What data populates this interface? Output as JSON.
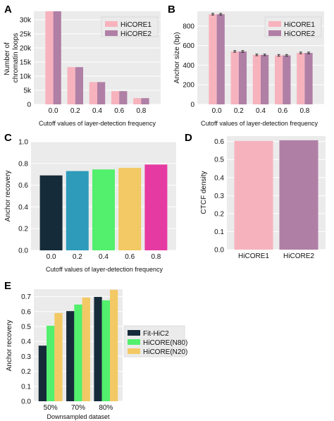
{
  "colors": {
    "hicore1": "#f7b3bd",
    "hicore2": "#b07fa6",
    "fithic2": "#162b3a",
    "hicore_n80": "#52f06c",
    "hicore_n20": "#f2c964",
    "c_bar1": "#162b3a",
    "c_bar2": "#2e9bbb",
    "c_bar3": "#52f06c",
    "c_bar4": "#f2c964",
    "c_bar5": "#e63aa3"
  },
  "chart_data": [
    {
      "id": "A",
      "panel_label": "A",
      "type": "bar",
      "categories": [
        "0.0",
        "0.2",
        "0.4",
        "0.6",
        "0.8"
      ],
      "series": [
        {
          "name": "HiCORE1",
          "values": [
            33000,
            13200,
            7900,
            4700,
            2200
          ]
        },
        {
          "name": "HiCORE2",
          "values": [
            33000,
            13200,
            7900,
            4700,
            2200
          ]
        }
      ],
      "ylabel": "Number of\nchromatin loops",
      "xlabel": "Cutoff values of layer-detection frequency",
      "ylim": [
        0,
        33000
      ],
      "yticks": [
        0,
        5000,
        10000,
        15000,
        20000,
        25000,
        30000
      ],
      "ytick_labels": [
        "0",
        "5k",
        "10k",
        "15k",
        "20k",
        "25k",
        "30k"
      ],
      "grid": true,
      "legend": "top-right"
    },
    {
      "id": "B",
      "panel_label": "B",
      "type": "bar",
      "categories": [
        "0.0",
        "0.2",
        "0.4",
        "0.6",
        "0.8"
      ],
      "series": [
        {
          "name": "HiCORE1",
          "values": [
            920,
            540,
            505,
            500,
            525
          ]
        },
        {
          "name": "HiCORE2",
          "values": [
            920,
            540,
            505,
            500,
            525
          ]
        }
      ],
      "error_bars": true,
      "ylabel": "Anchor size (bp)",
      "xlabel": "Cutoff values of layer-detection frequency",
      "ylim": [
        0,
        950
      ],
      "yticks": [
        0,
        200,
        400,
        600,
        800
      ],
      "ytick_labels": [
        "0",
        "200",
        "400",
        "600",
        "800"
      ],
      "grid": true,
      "legend": "top-right"
    },
    {
      "id": "C",
      "panel_label": "C",
      "type": "bar",
      "categories": [
        "0.0",
        "0.2",
        "0.4",
        "0.6",
        "0.8"
      ],
      "values": [
        0.69,
        0.73,
        0.745,
        0.76,
        0.79
      ],
      "ylabel": "Anchor recovery",
      "xlabel": "Cutoff values of layer-detection frequency",
      "ylim": [
        0,
        1.0
      ],
      "yticks": [
        0,
        0.2,
        0.4,
        0.6,
        0.8,
        1.0
      ],
      "ytick_labels": [
        "0.0",
        "0.2",
        "0.4",
        "0.6",
        "0.8",
        "1.0"
      ],
      "grid": true
    },
    {
      "id": "D",
      "panel_label": "D",
      "type": "bar",
      "categories": [
        "HiCORE1",
        "HiCORE2"
      ],
      "values": [
        0.603,
        0.607
      ],
      "ylabel": "CTCF density",
      "xlabel": "",
      "ylim": [
        0,
        0.63
      ],
      "yticks": [
        0,
        0.1,
        0.2,
        0.3,
        0.4,
        0.5,
        0.6
      ],
      "ytick_labels": [
        "0.0",
        "0.1",
        "0.2",
        "0.3",
        "0.4",
        "0.5",
        "0.6"
      ],
      "grid": true
    },
    {
      "id": "E",
      "panel_label": "E",
      "type": "bar",
      "categories": [
        "50%",
        "70%",
        "80%"
      ],
      "series": [
        {
          "name": "Fit-HiC2",
          "values": [
            0.372,
            0.603,
            0.698
          ]
        },
        {
          "name": "HiCORE(N80)",
          "values": [
            0.505,
            0.647,
            0.675
          ]
        },
        {
          "name": "HiCORE(N20)",
          "values": [
            0.59,
            0.694,
            0.745
          ]
        }
      ],
      "ylabel": "Anchor recovery",
      "xlabel": "Downsampled dataset",
      "ylim": [
        0,
        0.75
      ],
      "yticks": [
        0,
        0.1,
        0.2,
        0.3,
        0.4,
        0.5,
        0.6,
        0.7
      ],
      "ytick_labels": [
        "0.0",
        "0.1",
        "0.2",
        "0.3",
        "0.4",
        "0.5",
        "0.6",
        "0.7"
      ],
      "grid": true,
      "legend": "center-right"
    }
  ]
}
